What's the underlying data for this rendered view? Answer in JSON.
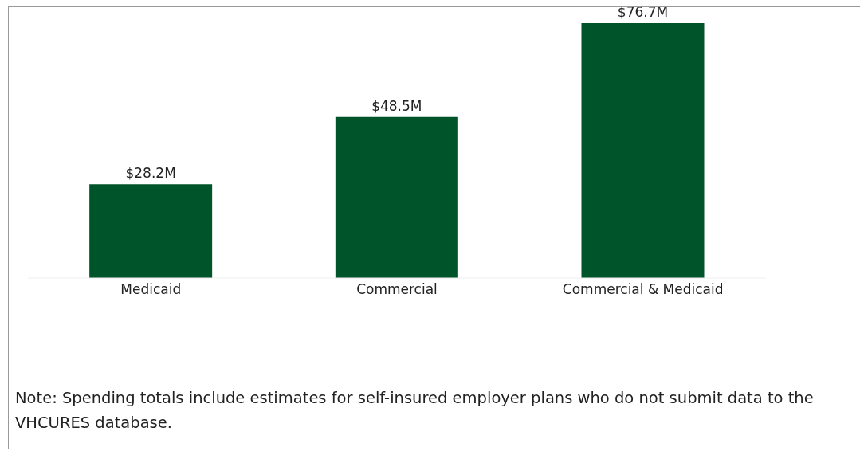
{
  "chart_data": {
    "type": "bar",
    "categories": [
      "Medicaid",
      "Commercial",
      "Commercial & Medicaid"
    ],
    "values": [
      28.2,
      48.5,
      76.7
    ],
    "value_labels": [
      "$28.2M",
      "$48.5M",
      "$76.7M"
    ],
    "color": "#00542a",
    "annotations": [
      "Note: Spending totals include estimates for self-insured employer plans who do not submit data to the VHCURES database."
    ]
  }
}
